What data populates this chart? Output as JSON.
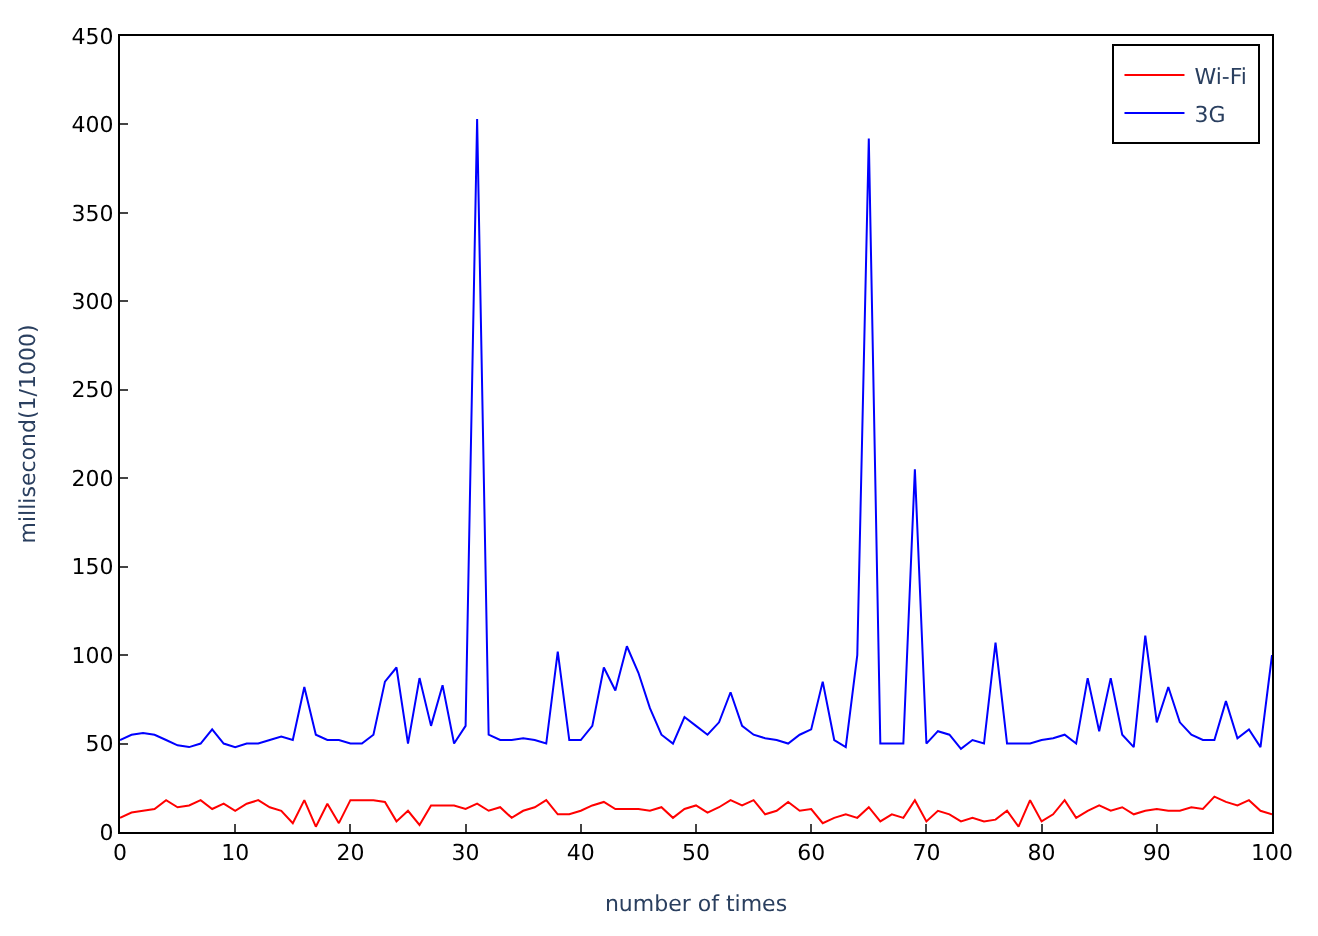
{
  "chart_data": {
    "type": "line",
    "xlabel": "number of times",
    "ylabel": "millisecond(1/1000)",
    "x": [
      0,
      1,
      2,
      3,
      4,
      5,
      6,
      7,
      8,
      9,
      10,
      11,
      12,
      13,
      14,
      15,
      16,
      17,
      18,
      19,
      20,
      21,
      22,
      23,
      24,
      25,
      26,
      27,
      28,
      29,
      30,
      31,
      32,
      33,
      34,
      35,
      36,
      37,
      38,
      39,
      40,
      41,
      42,
      43,
      44,
      45,
      46,
      47,
      48,
      49,
      50,
      51,
      52,
      53,
      54,
      55,
      56,
      57,
      58,
      59,
      60,
      61,
      62,
      63,
      64,
      65,
      66,
      67,
      68,
      69,
      70,
      71,
      72,
      73,
      74,
      75,
      76,
      77,
      78,
      79,
      80,
      81,
      82,
      83,
      84,
      85,
      86,
      87,
      88,
      89,
      90,
      91,
      92,
      93,
      94,
      95,
      96,
      97,
      98,
      99,
      100
    ],
    "series": [
      {
        "name": "Wi-Fi",
        "color": "#ff0000",
        "values": [
          8,
          11,
          12,
          13,
          18,
          14,
          15,
          18,
          13,
          16,
          12,
          16,
          18,
          14,
          12,
          5,
          18,
          3,
          16,
          5,
          18,
          18,
          18,
          17,
          6,
          12,
          4,
          15,
          15,
          15,
          13,
          16,
          12,
          14,
          8,
          12,
          14,
          18,
          10,
          10,
          12,
          15,
          17,
          13,
          13,
          13,
          12,
          14,
          8,
          13,
          15,
          11,
          14,
          18,
          15,
          18,
          10,
          12,
          17,
          12,
          13,
          5,
          8,
          10,
          8,
          14,
          6,
          10,
          8,
          18,
          6,
          12,
          10,
          6,
          8,
          6,
          7,
          12,
          3,
          18,
          6,
          10,
          18,
          8,
          12,
          15,
          12,
          14,
          10,
          12,
          13,
          12,
          12,
          14,
          13,
          20,
          17,
          15,
          18,
          12,
          10
        ]
      },
      {
        "name": "3G",
        "color": "#0000ff",
        "values": [
          52,
          55,
          56,
          55,
          52,
          49,
          48,
          50,
          58,
          50,
          48,
          50,
          50,
          52,
          54,
          52,
          82,
          55,
          52,
          52,
          50,
          50,
          55,
          85,
          93,
          50,
          87,
          60,
          83,
          50,
          60,
          403,
          55,
          52,
          52,
          53,
          52,
          50,
          102,
          52,
          52,
          60,
          93,
          80,
          105,
          90,
          70,
          55,
          50,
          65,
          60,
          55,
          62,
          79,
          60,
          55,
          53,
          52,
          50,
          55,
          58,
          85,
          52,
          48,
          100,
          392,
          50,
          50,
          50,
          205,
          50,
          57,
          55,
          47,
          52,
          50,
          107,
          50,
          50,
          50,
          52,
          53,
          55,
          50,
          87,
          57,
          87,
          55,
          48,
          111,
          62,
          82,
          62,
          55,
          52,
          52,
          74,
          53,
          58,
          48,
          100
        ]
      }
    ],
    "xlim": [
      0,
      100
    ],
    "xticks": [
      0,
      10,
      20,
      30,
      40,
      50,
      60,
      70,
      80,
      90,
      100
    ],
    "ylim": [
      0,
      450
    ],
    "yticks": [
      0,
      50,
      100,
      150,
      200,
      250,
      300,
      350,
      400,
      450
    ],
    "legend": "top right",
    "marker": "none",
    "line_style": "solid"
  }
}
